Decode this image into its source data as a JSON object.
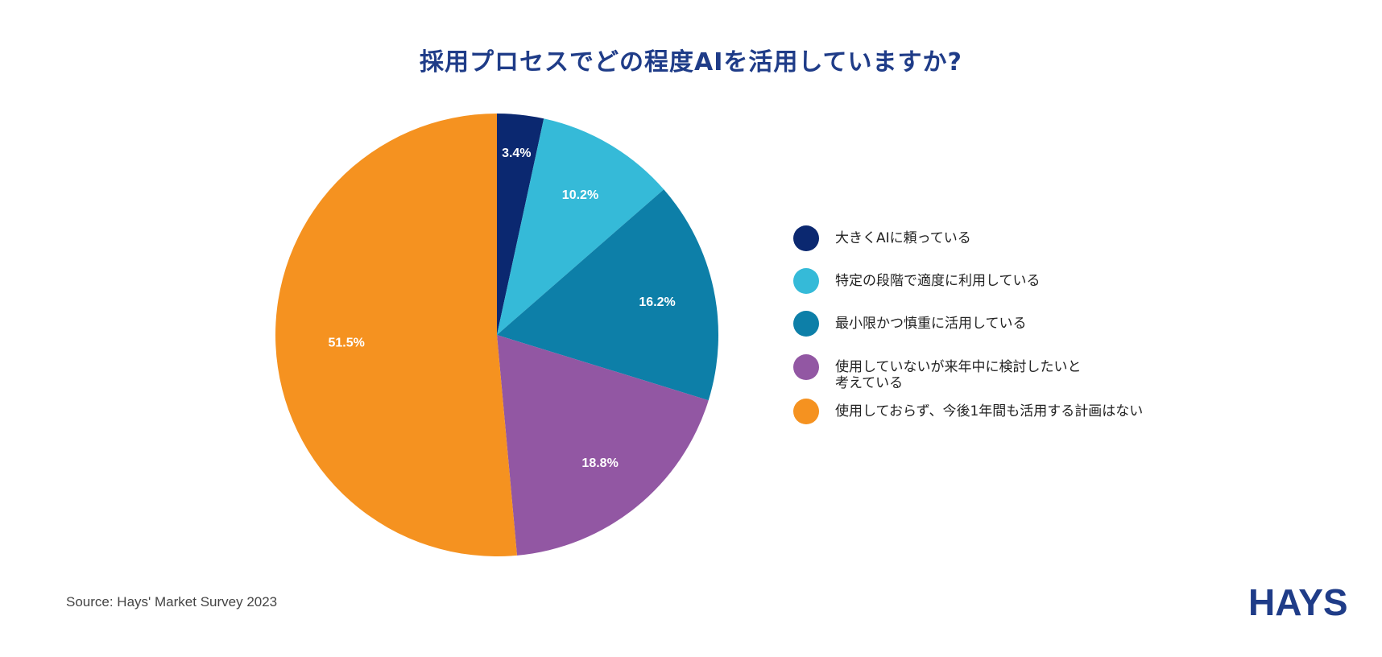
{
  "chart_data": {
    "type": "pie",
    "title": "採用プロセスでどの程度AIを活用していますか?",
    "slices": [
      {
        "label": "大きくAIに頼っている",
        "value": 3.4,
        "display": "3.4%",
        "color": "#0b2870"
      },
      {
        "label": "特定の段階で適度に利用している",
        "value": 10.2,
        "display": "10.2%",
        "color": "#35bad8"
      },
      {
        "label": "最小限かつ慎重に活用している",
        "value": 16.2,
        "display": "16.2%",
        "color": "#0d7fa8"
      },
      {
        "label": "使用していないが来年中に検討したいと\n考えている",
        "value": 18.8,
        "display": "18.8%",
        "color": "#9257a3"
      },
      {
        "label": "使用しておらず、今後1年間も活用する計画はない",
        "value": 51.5,
        "display": "51.5%",
        "color": "#f59220"
      }
    ],
    "legend_position": "right"
  },
  "source": "Source: Hays' Market Survey 2023",
  "logo": {
    "text": "HAYS",
    "color": "#1f3c88"
  }
}
